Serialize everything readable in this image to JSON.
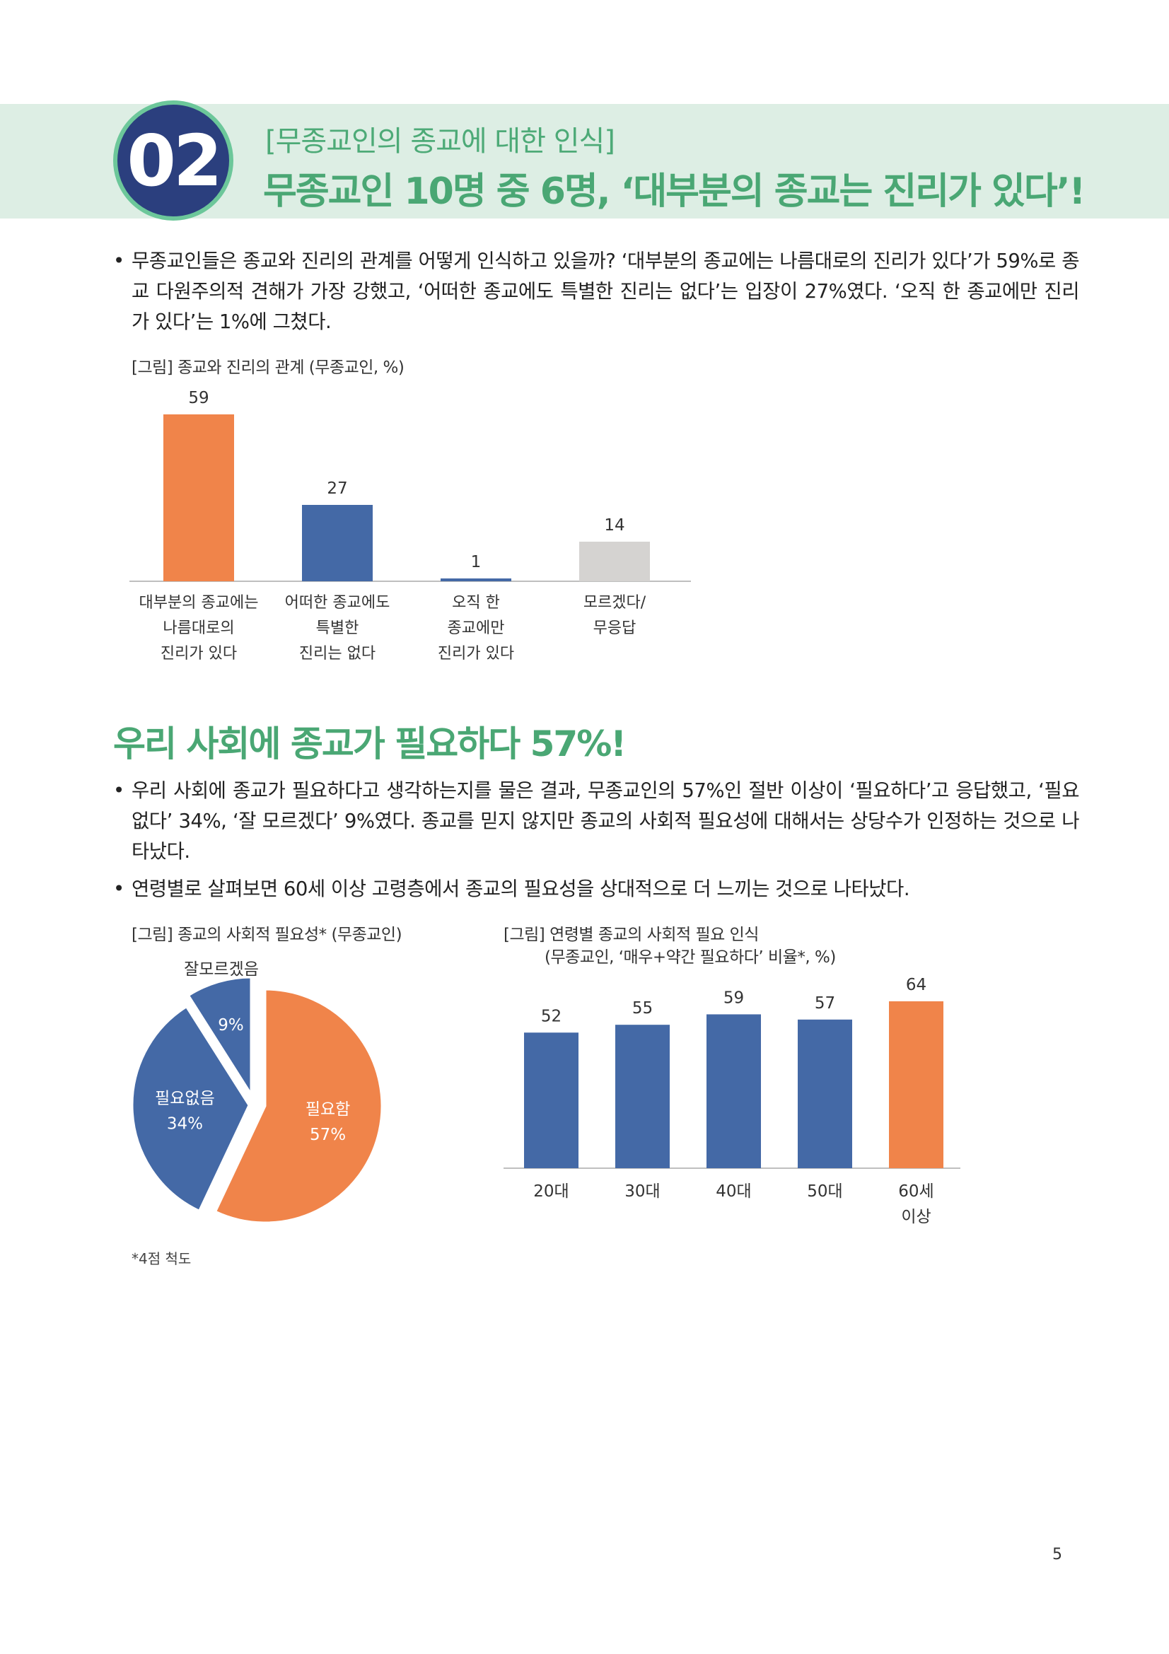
{
  "header": {
    "number": "02",
    "subtitle": "[무종교인의 종교에 대한 인식]",
    "title": "무종교인 10명 중 6명, ‘대부분의 종교는 진리가 있다’!"
  },
  "paragraph1": "무종교인들은 종교와 진리의 관계를 어떻게 인식하고 있을까? ‘대부분의 종교에는 나름대로의 진리가 있다’가 59%로 종교 다원주의적 견해가 가장 강했고, ‘어떠한 종교에도 특별한 진리는 없다’는 입장이 27%였다. ‘오직 한 종교에만 진리가 있다’는 1%에 그쳤다.",
  "fig1_caption": "[그림] 종교와 진리의 관계 (무종교인, %)",
  "section2_title": "우리 사회에 종교가 필요하다 57%!",
  "paragraph2": "우리 사회에 종교가 필요하다고 생각하는지를 물은 결과, 무종교인의 57%인 절반 이상이 ‘필요하다’고 응답했고, ‘필요 없다’ 34%, ‘잘 모르겠다’ 9%였다. 종교를 믿지 않지만 종교의 사회적 필요성에 대해서는 상당수가 인정하는 것으로 나타났다.",
  "paragraph3": "연령별로 살펴보면 60세 이상 고령층에서 종교의 필요성을 상대적으로 더 느끼는 것으로 나타났다.",
  "fig2_caption": "[그림] 종교의 사회적 필요성* (무종교인)",
  "fig3_caption_line1": "[그림] 연령별 종교의 사회적 필요 인식",
  "fig3_caption_line2": "(무종교인, ‘매우+약간 필요하다’ 비율*, %)",
  "footnote": "*4점 척도",
  "page_number": "5",
  "colors": {
    "green": "#4aa774",
    "navy": "#2b3f7e",
    "orange": "#f0844a",
    "blue": "#4469a6",
    "gray": "#d5d3d1"
  },
  "chart_data": [
    {
      "type": "bar",
      "categories": [
        [
          "대부분의 종교에는",
          "나름대로의",
          "진리가 있다"
        ],
        [
          "어떠한 종교에도",
          "특별한",
          "진리는 없다"
        ],
        [
          "오직 한",
          "종교에만",
          "진리가 있다"
        ],
        [
          "모르겠다/",
          "무응답"
        ]
      ],
      "values": [
        59,
        27,
        1,
        14
      ],
      "bar_colors": [
        "#f0844a",
        "#4469a6",
        "#4469a6",
        "#d5d3d1"
      ],
      "ylim": [
        0,
        59
      ]
    },
    {
      "type": "pie",
      "slices": [
        {
          "label": "필요함",
          "value": 57,
          "value_label": "57%",
          "color": "#f0844a"
        },
        {
          "label": "필요없음",
          "value": 34,
          "value_label": "34%",
          "color": "#4469a6"
        },
        {
          "label": "잘모르겠음",
          "value": 9,
          "value_label": "9%",
          "color": "#4469a6"
        }
      ]
    },
    {
      "type": "bar",
      "categories": [
        [
          "20대"
        ],
        [
          "30대"
        ],
        [
          "40대"
        ],
        [
          "50대"
        ],
        [
          "60세",
          "이상"
        ]
      ],
      "values": [
        52,
        55,
        59,
        57,
        64
      ],
      "bar_colors": [
        "#4469a6",
        "#4469a6",
        "#4469a6",
        "#4469a6",
        "#f0844a"
      ],
      "ylim": [
        0,
        64
      ]
    }
  ]
}
